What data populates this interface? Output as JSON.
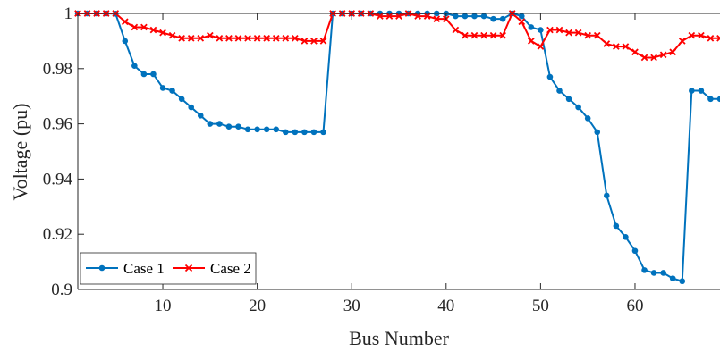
{
  "chart_data": {
    "type": "line",
    "title": "",
    "xlabel": "Bus Number",
    "ylabel": "Voltage (pu)",
    "xlim": [
      1,
      69
    ],
    "ylim": [
      0.9,
      1.0
    ],
    "xticks": [
      10,
      20,
      30,
      40,
      50,
      60
    ],
    "yticks": [
      0.9,
      0.92,
      0.94,
      0.96,
      0.98,
      1.0
    ],
    "ytick_labels": [
      "0.9",
      "0.92",
      "0.94",
      "0.96",
      "0.98",
      "1"
    ],
    "grid": false,
    "legend_position": "bottom-left",
    "x": [
      1,
      2,
      3,
      4,
      5,
      6,
      7,
      8,
      9,
      10,
      11,
      12,
      13,
      14,
      15,
      16,
      17,
      18,
      19,
      20,
      21,
      22,
      23,
      24,
      25,
      26,
      27,
      28,
      29,
      30,
      31,
      32,
      33,
      34,
      35,
      36,
      37,
      38,
      39,
      40,
      41,
      42,
      43,
      44,
      45,
      46,
      47,
      48,
      49,
      50,
      51,
      52,
      53,
      54,
      55,
      56,
      57,
      58,
      59,
      60,
      61,
      62,
      63,
      64,
      65,
      66,
      67,
      68,
      69
    ],
    "series": [
      {
        "name": "Case 1",
        "color": "#0072bd",
        "marker": "circle",
        "values": [
          1.0,
          1.0,
          1.0,
          1.0,
          0.9999,
          0.99,
          0.981,
          0.978,
          0.978,
          0.973,
          0.972,
          0.969,
          0.966,
          0.963,
          0.96,
          0.96,
          0.959,
          0.959,
          0.958,
          0.958,
          0.958,
          0.958,
          0.957,
          0.957,
          0.957,
          0.957,
          0.957,
          1.0,
          1.0,
          1.0,
          1.0,
          1.0,
          1.0,
          1.0,
          1.0,
          1.0,
          1.0,
          1.0,
          1.0,
          1.0,
          0.999,
          0.999,
          0.999,
          0.999,
          0.998,
          0.998,
          1.0,
          0.999,
          0.995,
          0.994,
          0.977,
          0.972,
          0.969,
          0.966,
          0.962,
          0.957,
          0.934,
          0.923,
          0.919,
          0.914,
          0.907,
          0.906,
          0.906,
          0.904,
          0.903,
          0.972,
          0.972,
          0.969,
          0.969
        ]
      },
      {
        "name": "Case 2",
        "color": "#ff0000",
        "marker": "x",
        "values": [
          1.0,
          1.0,
          1.0,
          1.0,
          1.0,
          0.997,
          0.995,
          0.995,
          0.994,
          0.993,
          0.992,
          0.991,
          0.991,
          0.991,
          0.992,
          0.991,
          0.991,
          0.991,
          0.991,
          0.991,
          0.991,
          0.991,
          0.991,
          0.991,
          0.99,
          0.99,
          0.99,
          1.0,
          1.0,
          1.0,
          1.0,
          1.0,
          0.999,
          0.999,
          0.999,
          1.0,
          0.999,
          0.999,
          0.998,
          0.998,
          0.994,
          0.992,
          0.992,
          0.992,
          0.992,
          0.992,
          1.0,
          0.997,
          0.99,
          0.988,
          0.994,
          0.994,
          0.993,
          0.993,
          0.992,
          0.992,
          0.989,
          0.988,
          0.988,
          0.986,
          0.984,
          0.984,
          0.985,
          0.986,
          0.99,
          0.992,
          0.992,
          0.991,
          0.991
        ]
      }
    ]
  }
}
